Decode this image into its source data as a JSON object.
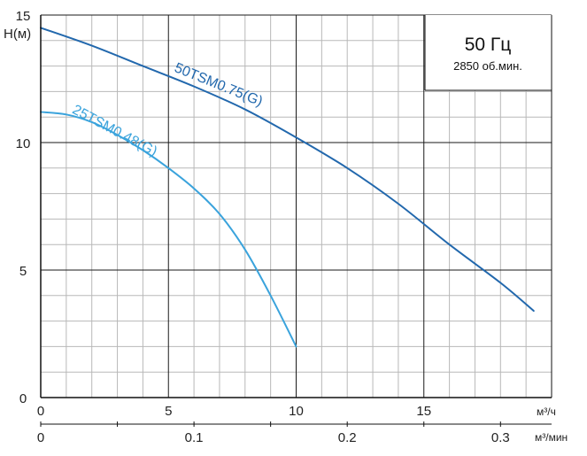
{
  "chart_data": {
    "type": "line",
    "ylabel": "H(м)",
    "x_unit": "м³/ч",
    "x2_unit": "м³/мин",
    "xlim": [
      0,
      20
    ],
    "ylim": [
      0,
      15
    ],
    "x_ticks": [
      "0",
      "5",
      "10",
      "15"
    ],
    "x2_ticks": [
      "0",
      "0.1",
      "0.2",
      "0.3"
    ],
    "y_ticks": [
      "0",
      "5",
      "10",
      "15"
    ],
    "grid": true,
    "info_box": {
      "frequency": "50 Гц",
      "speed": "2850 об.мин."
    },
    "series": [
      {
        "name": "50TSM0.75(G)",
        "color": "#2268ad",
        "x": [
          0,
          2,
          4,
          6,
          8,
          10,
          12,
          14,
          16,
          18,
          19.3
        ],
        "y": [
          14.5,
          13.8,
          13.0,
          12.2,
          11.3,
          10.2,
          9.0,
          7.6,
          6.0,
          4.5,
          3.4
        ]
      },
      {
        "name": "25TSM0.48(G)",
        "color": "#3aa3dc",
        "x": [
          0,
          1,
          2,
          3,
          4,
          5,
          6,
          7,
          8,
          9,
          10
        ],
        "y": [
          11.2,
          11.1,
          10.8,
          10.3,
          9.7,
          9.0,
          8.2,
          7.2,
          5.8,
          4.0,
          2.0
        ]
      }
    ]
  }
}
